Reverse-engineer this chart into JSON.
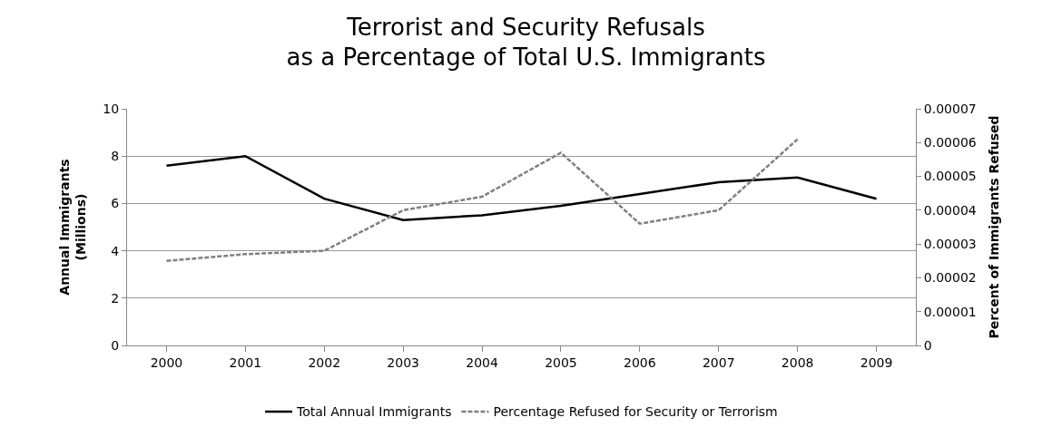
{
  "chart_data": {
    "type": "line",
    "title": "Terrorist and Security Refusals\nas a Percentage of Total U.S. Immigrants",
    "ylabel": "Annual Immigrants\n(Millions)",
    "y2label": "Percent of Immigrants Refused",
    "categories": [
      "2000",
      "2001",
      "2002",
      "2003",
      "2004",
      "2005",
      "2006",
      "2007",
      "2008",
      "2009"
    ],
    "series": [
      {
        "name": "Total Annual Immigrants",
        "color": "#000000",
        "line_style": "solid",
        "values": [
          7.6,
          8.0,
          6.2,
          5.3,
          5.5,
          5.9,
          6.4,
          6.9,
          7.1,
          6.2
        ]
      },
      {
        "name": "Percentage Refused for Security or Terrorism",
        "color": "#808080",
        "line_style": "dashed",
        "axis": "y2",
        "values": [
          2.5e-05,
          2.7e-05,
          2.8e-05,
          4e-05,
          4.4e-05,
          5.7e-05,
          3.6e-05,
          4e-05,
          6.1e-05,
          null
        ]
      }
    ],
    "ylim": [
      0,
      10
    ],
    "yticks": [
      0,
      2,
      4,
      6,
      8,
      10
    ],
    "y2lim": [
      0,
      7e-05
    ],
    "y2ticks": [
      {
        "value": 0,
        "label": "0"
      },
      {
        "value": 1e-05,
        "label": "0.00001"
      },
      {
        "value": 2e-05,
        "label": "0.00002"
      },
      {
        "value": 3e-05,
        "label": "0.00003"
      },
      {
        "value": 4e-05,
        "label": "0.00004"
      },
      {
        "value": 5e-05,
        "label": "0.00005"
      },
      {
        "value": 6e-05,
        "label": "0.00006"
      },
      {
        "value": 7e-05,
        "label": "0.00007"
      }
    ],
    "grid": "y",
    "legend": "bottom",
    "marker": "none"
  }
}
